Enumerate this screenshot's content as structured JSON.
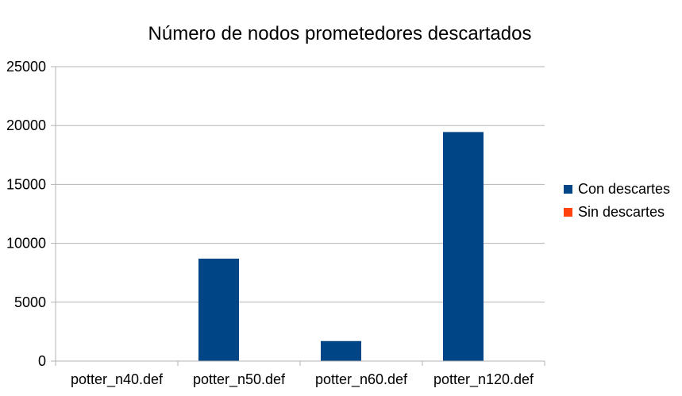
{
  "chart_data": {
    "type": "bar",
    "title": "Número de nodos prometedores descartados",
    "xlabel": "",
    "ylabel": "",
    "categories": [
      "potter_n40.def",
      "potter_n50.def",
      "potter_n60.def",
      "potter_n120.def"
    ],
    "series": [
      {
        "name": "Con descartes",
        "values": [
          20,
          8700,
          1700,
          19450
        ],
        "color": "#004586"
      },
      {
        "name": "Sin descartes",
        "values": [
          0,
          0,
          0,
          0
        ],
        "color": "#ff420e"
      }
    ],
    "ylim": [
      0,
      25000
    ],
    "yticks": [
      0,
      5000,
      10000,
      15000,
      20000,
      25000
    ],
    "grid": true,
    "legend_position": "right"
  }
}
